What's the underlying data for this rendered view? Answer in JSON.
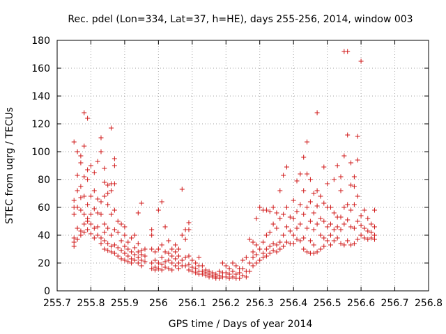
{
  "chart_data": {
    "type": "scatter",
    "title": "Rec. pdel (Lon=334, Lat=37, h=HE), days 255-256, 2014, window 003",
    "xlabel": "GPS time / Days of year 2014",
    "ylabel": "STEC from uqrg / TECUs",
    "xlim": [
      255.7,
      256.8
    ],
    "ylim": [
      0,
      180
    ],
    "xticks": [
      "255.7",
      "255.8",
      "255.9",
      "256",
      "256.1",
      "256.2",
      "256.3",
      "256.4",
      "256.5",
      "256.6",
      "256.7",
      "256.8"
    ],
    "yticks": [
      "0",
      "20",
      "40",
      "60",
      "80",
      "100",
      "120",
      "140",
      "160",
      "180"
    ],
    "grid": true,
    "marker": "+",
    "color": "#d01818",
    "points": [
      [
        255.75,
        107
      ],
      [
        255.75,
        65
      ],
      [
        255.75,
        60
      ],
      [
        255.75,
        55
      ],
      [
        255.75,
        38
      ],
      [
        255.75,
        35
      ],
      [
        255.75,
        32
      ],
      [
        255.76,
        100
      ],
      [
        255.76,
        83
      ],
      [
        255.76,
        72
      ],
      [
        255.76,
        60
      ],
      [
        255.76,
        45
      ],
      [
        255.76,
        37
      ],
      [
        255.77,
        97
      ],
      [
        255.77,
        92
      ],
      [
        255.77,
        75
      ],
      [
        255.77,
        67
      ],
      [
        255.77,
        58
      ],
      [
        255.77,
        43
      ],
      [
        255.77,
        40
      ],
      [
        255.78,
        128
      ],
      [
        255.78,
        104
      ],
      [
        255.78,
        82
      ],
      [
        255.78,
        68
      ],
      [
        255.78,
        55
      ],
      [
        255.78,
        48
      ],
      [
        255.78,
        42
      ],
      [
        255.79,
        124
      ],
      [
        255.79,
        87
      ],
      [
        255.79,
        80
      ],
      [
        255.79,
        62
      ],
      [
        255.79,
        52
      ],
      [
        255.79,
        50
      ],
      [
        255.79,
        44
      ],
      [
        255.8,
        90
      ],
      [
        255.8,
        68
      ],
      [
        255.8,
        55
      ],
      [
        255.8,
        48
      ],
      [
        255.8,
        41
      ],
      [
        255.81,
        85
      ],
      [
        255.81,
        72
      ],
      [
        255.81,
        59
      ],
      [
        255.81,
        45
      ],
      [
        255.81,
        38
      ],
      [
        255.82,
        93
      ],
      [
        255.82,
        66
      ],
      [
        255.82,
        56
      ],
      [
        255.82,
        46
      ],
      [
        255.82,
        40
      ],
      [
        255.83,
        110
      ],
      [
        255.83,
        100
      ],
      [
        255.83,
        64
      ],
      [
        255.83,
        55
      ],
      [
        255.83,
        38
      ],
      [
        255.83,
        34
      ],
      [
        255.84,
        88
      ],
      [
        255.84,
        78
      ],
      [
        255.84,
        68
      ],
      [
        255.84,
        48
      ],
      [
        255.84,
        42
      ],
      [
        255.84,
        36
      ],
      [
        255.84,
        30
      ],
      [
        255.85,
        76
      ],
      [
        255.85,
        70
      ],
      [
        255.85,
        62
      ],
      [
        255.85,
        45
      ],
      [
        255.85,
        34
      ],
      [
        255.85,
        29
      ],
      [
        255.86,
        117
      ],
      [
        255.86,
        77
      ],
      [
        255.86,
        72
      ],
      [
        255.86,
        55
      ],
      [
        255.86,
        40
      ],
      [
        255.86,
        32
      ],
      [
        255.86,
        28
      ],
      [
        255.87,
        95
      ],
      [
        255.87,
        90
      ],
      [
        255.87,
        77
      ],
      [
        255.87,
        58
      ],
      [
        255.87,
        44
      ],
      [
        255.87,
        33
      ],
      [
        255.87,
        27
      ],
      [
        255.88,
        50
      ],
      [
        255.88,
        42
      ],
      [
        255.88,
        31
      ],
      [
        255.88,
        25
      ],
      [
        255.89,
        48
      ],
      [
        255.89,
        36
      ],
      [
        255.89,
        29
      ],
      [
        255.89,
        23
      ],
      [
        255.9,
        46
      ],
      [
        255.9,
        40
      ],
      [
        255.9,
        32
      ],
      [
        255.9,
        27
      ],
      [
        255.9,
        22
      ],
      [
        255.91,
        35
      ],
      [
        255.91,
        30
      ],
      [
        255.91,
        25
      ],
      [
        255.91,
        21
      ],
      [
        255.92,
        38
      ],
      [
        255.92,
        28
      ],
      [
        255.92,
        23
      ],
      [
        255.92,
        20
      ],
      [
        255.93,
        40
      ],
      [
        255.93,
        31
      ],
      [
        255.93,
        26
      ],
      [
        255.93,
        22
      ],
      [
        255.94,
        56
      ],
      [
        255.94,
        34
      ],
      [
        255.94,
        28
      ],
      [
        255.94,
        24
      ],
      [
        255.94,
        20
      ],
      [
        255.95,
        63
      ],
      [
        255.95,
        29
      ],
      [
        255.95,
        26
      ],
      [
        255.95,
        22
      ],
      [
        255.95,
        18
      ],
      [
        255.96,
        30
      ],
      [
        255.96,
        25
      ],
      [
        255.96,
        21
      ],
      [
        255.98,
        44
      ],
      [
        255.98,
        40
      ],
      [
        255.98,
        30
      ],
      [
        255.98,
        20
      ],
      [
        255.98,
        16
      ],
      [
        255.99,
        28
      ],
      [
        255.99,
        22
      ],
      [
        255.99,
        17
      ],
      [
        255.99,
        15
      ],
      [
        256.0,
        58
      ],
      [
        256.0,
        30
      ],
      [
        256.0,
        20
      ],
      [
        256.0,
        16
      ],
      [
        256.01,
        64
      ],
      [
        256.01,
        33
      ],
      [
        256.01,
        24
      ],
      [
        256.01,
        19
      ],
      [
        256.01,
        15
      ],
      [
        256.02,
        46
      ],
      [
        256.02,
        28
      ],
      [
        256.02,
        21
      ],
      [
        256.02,
        17
      ],
      [
        256.03,
        36
      ],
      [
        256.03,
        27
      ],
      [
        256.03,
        22
      ],
      [
        256.03,
        16
      ],
      [
        256.04,
        30
      ],
      [
        256.04,
        25
      ],
      [
        256.04,
        20
      ],
      [
        256.04,
        15
      ],
      [
        256.05,
        33
      ],
      [
        256.05,
        28
      ],
      [
        256.05,
        23
      ],
      [
        256.05,
        18
      ],
      [
        256.06,
        30
      ],
      [
        256.06,
        25
      ],
      [
        256.06,
        20
      ],
      [
        256.06,
        16
      ],
      [
        256.07,
        73
      ],
      [
        256.07,
        40
      ],
      [
        256.07,
        22
      ],
      [
        256.07,
        18
      ],
      [
        256.08,
        44
      ],
      [
        256.08,
        37
      ],
      [
        256.08,
        24
      ],
      [
        256.08,
        18
      ],
      [
        256.09,
        49
      ],
      [
        256.09,
        44
      ],
      [
        256.09,
        25
      ],
      [
        256.09,
        19
      ],
      [
        256.09,
        15
      ],
      [
        256.1,
        22
      ],
      [
        256.1,
        17
      ],
      [
        256.1,
        14
      ],
      [
        256.11,
        20
      ],
      [
        256.11,
        16
      ],
      [
        256.11,
        13
      ],
      [
        256.12,
        24
      ],
      [
        256.12,
        18
      ],
      [
        256.12,
        14
      ],
      [
        256.12,
        12
      ],
      [
        256.13,
        18
      ],
      [
        256.13,
        14
      ],
      [
        256.13,
        12
      ],
      [
        256.14,
        15
      ],
      [
        256.14,
        13
      ],
      [
        256.14,
        11
      ],
      [
        256.15,
        14
      ],
      [
        256.15,
        12
      ],
      [
        256.15,
        10
      ],
      [
        256.16,
        13
      ],
      [
        256.16,
        11
      ],
      [
        256.16,
        10
      ],
      [
        256.17,
        12
      ],
      [
        256.17,
        10
      ],
      [
        256.17,
        9
      ],
      [
        256.18,
        14
      ],
      [
        256.18,
        11
      ],
      [
        256.18,
        9
      ],
      [
        256.19,
        20
      ],
      [
        256.19,
        13
      ],
      [
        256.19,
        10
      ],
      [
        256.2,
        18
      ],
      [
        256.2,
        13
      ],
      [
        256.2,
        10
      ],
      [
        256.21,
        16
      ],
      [
        256.21,
        12
      ],
      [
        256.21,
        9
      ],
      [
        256.22,
        20
      ],
      [
        256.22,
        14
      ],
      [
        256.22,
        10
      ],
      [
        256.23,
        18
      ],
      [
        256.23,
        12
      ],
      [
        256.23,
        9
      ],
      [
        256.24,
        16
      ],
      [
        256.24,
        13
      ],
      [
        256.24,
        9
      ],
      [
        256.25,
        22
      ],
      [
        256.25,
        16
      ],
      [
        256.25,
        11
      ],
      [
        256.26,
        24
      ],
      [
        256.26,
        14
      ],
      [
        256.26,
        10
      ],
      [
        256.27,
        37
      ],
      [
        256.27,
        20
      ],
      [
        256.27,
        14
      ],
      [
        256.28,
        35
      ],
      [
        256.28,
        28
      ],
      [
        256.28,
        24
      ],
      [
        256.28,
        18
      ],
      [
        256.29,
        52
      ],
      [
        256.29,
        33
      ],
      [
        256.29,
        26
      ],
      [
        256.29,
        20
      ],
      [
        256.3,
        60
      ],
      [
        256.3,
        30
      ],
      [
        256.3,
        22
      ],
      [
        256.31,
        58
      ],
      [
        256.31,
        35
      ],
      [
        256.31,
        27
      ],
      [
        256.31,
        24
      ],
      [
        256.32,
        58
      ],
      [
        256.32,
        40
      ],
      [
        256.32,
        30
      ],
      [
        256.32,
        25
      ],
      [
        256.33,
        57
      ],
      [
        256.33,
        42
      ],
      [
        256.33,
        32
      ],
      [
        256.33,
        27
      ],
      [
        256.34,
        60
      ],
      [
        256.34,
        48
      ],
      [
        256.34,
        34
      ],
      [
        256.34,
        29
      ],
      [
        256.35,
        56
      ],
      [
        256.35,
        45
      ],
      [
        256.35,
        33
      ],
      [
        256.35,
        28
      ],
      [
        256.36,
        72
      ],
      [
        256.36,
        52
      ],
      [
        256.36,
        35
      ],
      [
        256.36,
        30
      ],
      [
        256.37,
        83
      ],
      [
        256.37,
        55
      ],
      [
        256.37,
        40
      ],
      [
        256.37,
        32
      ],
      [
        256.38,
        89
      ],
      [
        256.38,
        60
      ],
      [
        256.38,
        46
      ],
      [
        256.38,
        35
      ],
      [
        256.39,
        53
      ],
      [
        256.39,
        43
      ],
      [
        256.39,
        34
      ],
      [
        256.4,
        65
      ],
      [
        256.4,
        52
      ],
      [
        256.4,
        40
      ],
      [
        256.4,
        34
      ],
      [
        256.41,
        79
      ],
      [
        256.41,
        57
      ],
      [
        256.41,
        45
      ],
      [
        256.41,
        37
      ],
      [
        256.42,
        84
      ],
      [
        256.42,
        62
      ],
      [
        256.42,
        48
      ],
      [
        256.42,
        36
      ],
      [
        256.43,
        96
      ],
      [
        256.43,
        72
      ],
      [
        256.43,
        55
      ],
      [
        256.43,
        38
      ],
      [
        256.43,
        30
      ],
      [
        256.44,
        107
      ],
      [
        256.44,
        84
      ],
      [
        256.44,
        60
      ],
      [
        256.44,
        45
      ],
      [
        256.44,
        28
      ],
      [
        256.45,
        80
      ],
      [
        256.45,
        64
      ],
      [
        256.45,
        50
      ],
      [
        256.45,
        36
      ],
      [
        256.45,
        27
      ],
      [
        256.46,
        70
      ],
      [
        256.46,
        56
      ],
      [
        256.46,
        44
      ],
      [
        256.46,
        33
      ],
      [
        256.46,
        27
      ],
      [
        256.47,
        128
      ],
      [
        256.47,
        72
      ],
      [
        256.47,
        61
      ],
      [
        256.47,
        48
      ],
      [
        256.47,
        28
      ],
      [
        256.48,
        68
      ],
      [
        256.48,
        52
      ],
      [
        256.48,
        40
      ],
      [
        256.48,
        30
      ],
      [
        256.49,
        89
      ],
      [
        256.49,
        63
      ],
      [
        256.49,
        50
      ],
      [
        256.49,
        38
      ],
      [
        256.49,
        32
      ],
      [
        256.5,
        77
      ],
      [
        256.5,
        60
      ],
      [
        256.5,
        46
      ],
      [
        256.5,
        36
      ],
      [
        256.51,
        60
      ],
      [
        256.51,
        48
      ],
      [
        256.51,
        40
      ],
      [
        256.51,
        33
      ],
      [
        256.52,
        80
      ],
      [
        256.52,
        56
      ],
      [
        256.52,
        44
      ],
      [
        256.52,
        36
      ],
      [
        256.53,
        90
      ],
      [
        256.53,
        53
      ],
      [
        256.53,
        46
      ],
      [
        256.53,
        38
      ],
      [
        256.54,
        82
      ],
      [
        256.54,
        72
      ],
      [
        256.54,
        53
      ],
      [
        256.54,
        44
      ],
      [
        256.54,
        34
      ],
      [
        256.55,
        97
      ],
      [
        256.55,
        172
      ],
      [
        256.55,
        60
      ],
      [
        256.55,
        48
      ],
      [
        256.55,
        33
      ],
      [
        256.56,
        172
      ],
      [
        256.56,
        112
      ],
      [
        256.56,
        62
      ],
      [
        256.56,
        51
      ],
      [
        256.56,
        36
      ],
      [
        256.57,
        92
      ],
      [
        256.57,
        76
      ],
      [
        256.57,
        58
      ],
      [
        256.57,
        46
      ],
      [
        256.57,
        33
      ],
      [
        256.58,
        82
      ],
      [
        256.58,
        75
      ],
      [
        256.58,
        62
      ],
      [
        256.58,
        45
      ],
      [
        256.58,
        34
      ],
      [
        256.59,
        111
      ],
      [
        256.59,
        94
      ],
      [
        256.59,
        68
      ],
      [
        256.59,
        50
      ],
      [
        256.59,
        37
      ],
      [
        256.6,
        165
      ],
      [
        256.6,
        54
      ],
      [
        256.6,
        47
      ],
      [
        256.6,
        40
      ],
      [
        256.61,
        58
      ],
      [
        256.61,
        45
      ],
      [
        256.61,
        38
      ],
      [
        256.62,
        52
      ],
      [
        256.62,
        43
      ],
      [
        256.62,
        37
      ],
      [
        256.63,
        48
      ],
      [
        256.63,
        42
      ],
      [
        256.63,
        38
      ],
      [
        256.64,
        58
      ],
      [
        256.64,
        46
      ],
      [
        256.64,
        40
      ],
      [
        256.64,
        37
      ]
    ]
  }
}
